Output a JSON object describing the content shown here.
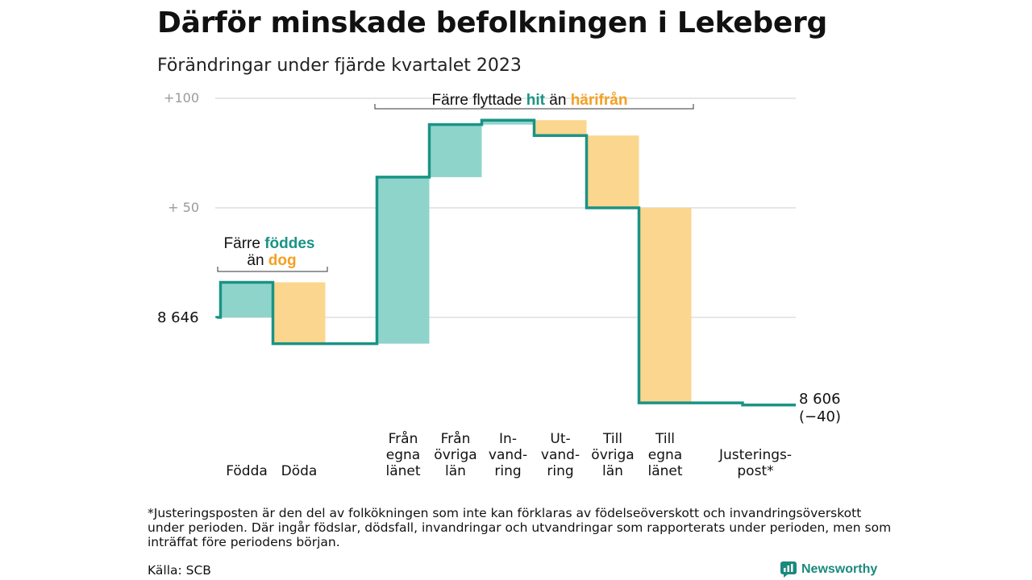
{
  "title": "Därför minskade befolkningen i Lekeberg",
  "subtitle": "Förändringar under fjärde kvartalet 2023",
  "footnote": "*Justeringsposten är den del av folkökningen som inte kan förklaras av födelseöverskott och invandringsöverskott under perioden. Där ingår födslar, dödsfall, invandringar och utvandringar som rapporterats under perioden, men som inträffat före periodens början.",
  "source": "Källa: SCB",
  "brand": "Newsworthy",
  "colors": {
    "teal": "#1a9385",
    "teal_fill": "#8fd4cb",
    "orange": "#f3a021",
    "orange_fill": "#fbd68e",
    "grid": "#dddddd"
  },
  "chart_data": {
    "type": "waterfall",
    "title": "Därför minskade befolkningen i Lekeberg",
    "subtitle": "Förändringar under fjärde kvartalet 2023",
    "start_label": "8  646",
    "start_value": 8646,
    "end_value": 8606,
    "end_label_lines": [
      "8 606",
      "(−40)"
    ],
    "y_ticks": [
      {
        "offset": 100,
        "label": "+100"
      },
      {
        "offset": 50,
        "label": "+  50"
      },
      {
        "offset": 0,
        "label": ""
      }
    ],
    "ylim": [
      -45,
      100
    ],
    "steps": [
      {
        "label_lines": [
          "Födda"
        ],
        "value": 16,
        "kind": "in"
      },
      {
        "label_lines": [
          "Döda"
        ],
        "value": -28,
        "kind": "out"
      },
      {
        "label_lines": [
          "Från",
          "egna",
          "länet"
        ],
        "value": 76,
        "kind": "in"
      },
      {
        "label_lines": [
          "Från",
          "övriga",
          "län"
        ],
        "value": 24,
        "kind": "in"
      },
      {
        "label_lines": [
          "In-",
          "vand-",
          "ring"
        ],
        "value": 2,
        "kind": "in"
      },
      {
        "label_lines": [
          "Ut-",
          "vand-",
          "ring"
        ],
        "value": -7,
        "kind": "out"
      },
      {
        "label_lines": [
          "Till",
          "övriga",
          "län"
        ],
        "value": -33,
        "kind": "out"
      },
      {
        "label_lines": [
          "Till",
          "egna",
          "länet"
        ],
        "value": -89,
        "kind": "out"
      },
      {
        "label_lines": [
          "Justerings-",
          "post*"
        ],
        "value": -1,
        "kind": "adjust"
      }
    ],
    "annotations": [
      {
        "lines": [
          [
            {
              "t": "Färre ",
              "c": "dark"
            },
            {
              "t": "föddes",
              "c": "teal"
            }
          ],
          [
            {
              "t": "än ",
              "c": "dark"
            },
            {
              "t": "dog",
              "c": "orange"
            }
          ]
        ]
      },
      {
        "lines": [
          [
            {
              "t": "Färre flyttade ",
              "c": "dark"
            },
            {
              "t": "hit",
              "c": "teal"
            },
            {
              "t": " än ",
              "c": "dark"
            },
            {
              "t": "härifrån",
              "c": "orange"
            }
          ]
        ]
      }
    ]
  }
}
